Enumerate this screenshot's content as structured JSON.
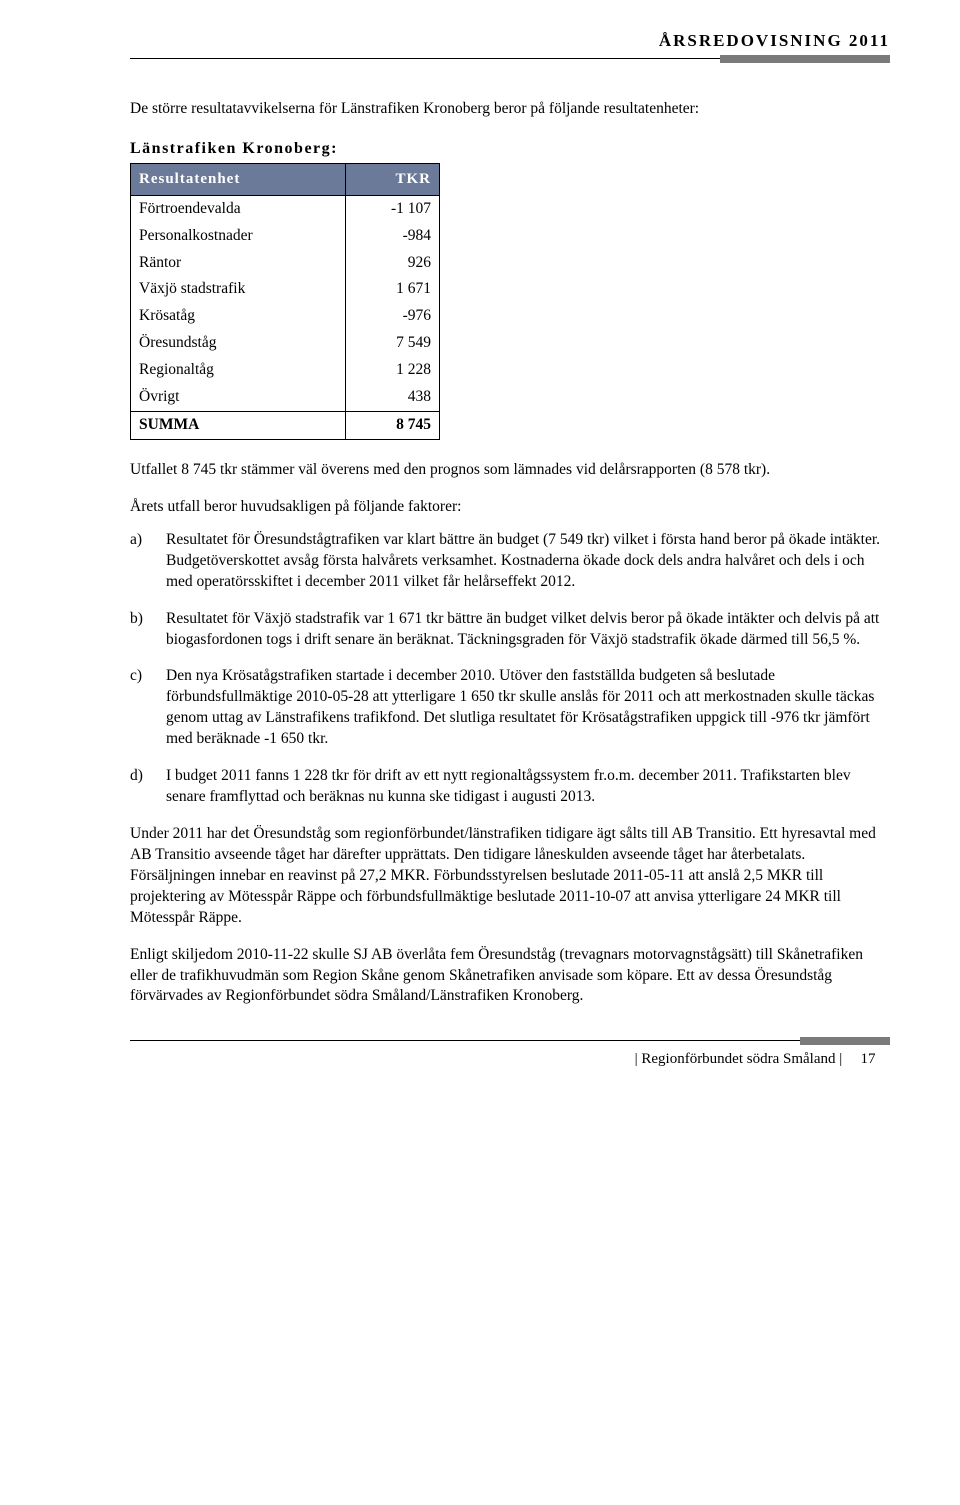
{
  "header": {
    "title": "ÅRSREDOVISNING 2011"
  },
  "intro": "De större resultatavvikelserna för Länstrafiken Kronoberg beror på följande resultatenheter:",
  "table": {
    "type": "table",
    "title": "Länstrafiken Kronoberg:",
    "header_bg": "#6a7a98",
    "header_fg": "#ffffff",
    "border_color": "#000000",
    "columns": [
      {
        "label": "Resultatenhet",
        "align": "left"
      },
      {
        "label": "TKR",
        "align": "right"
      }
    ],
    "rows": [
      {
        "name": "Förtroendevalda",
        "value": "-1 107"
      },
      {
        "name": "Personalkostnader",
        "value": "-984"
      },
      {
        "name": "Räntor",
        "value": "926"
      },
      {
        "name": "Växjö stadstrafik",
        "value": "1 671"
      },
      {
        "name": "Krösatåg",
        "value": "-976"
      },
      {
        "name": "Öresundståg",
        "value": "7 549"
      },
      {
        "name": "Regionaltåg",
        "value": "1 228"
      },
      {
        "name": "Övrigt",
        "value": "438"
      }
    ],
    "sum": {
      "name": "SUMMA",
      "value": "8 745"
    }
  },
  "after_table": "Utfallet 8 745 tkr stämmer väl överens med den prognos som lämnades vid delårsrapporten (8 578 tkr).",
  "list_intro": "Årets utfall beror huvudsakligen på följande faktorer:",
  "items": [
    {
      "marker": "a)",
      "text": "Resultatet för Öresundstågtrafiken var klart bättre än budget (7 549 tkr) vilket i första hand beror på ökade intäkter. Budgetöverskottet avsåg första halvårets verksamhet. Kostnaderna ökade dock dels andra halvåret och dels i och med operatörsskiftet i december 2011 vilket får helårseffekt 2012."
    },
    {
      "marker": "b)",
      "text": "Resultatet för Växjö stadstrafik var 1 671 tkr bättre än budget vilket delvis beror på ökade intäkter och delvis på att biogasfordonen togs i drift senare än beräknat. Täckningsgraden för Växjö stadstrafik ökade därmed till 56,5 %."
    },
    {
      "marker": "c)",
      "text": "Den nya Krösatågstrafiken startade i december 2010. Utöver den fastställda budgeten så beslutade förbundsfullmäktige 2010-05-28 att ytterligare 1 650 tkr skulle anslås för 2011 och att merkostnaden skulle täckas genom uttag av Länstrafikens trafikfond. Det slutliga resultatet för Krösatågstrafiken uppgick till -976 tkr jämfört med beräknade -1 650 tkr."
    },
    {
      "marker": "d)",
      "text": "I budget 2011 fanns 1 228 tkr för drift av ett nytt regionaltågssystem fr.o.m. december 2011. Trafikstarten blev senare framflyttad och beräknas nu kunna ske tidigast i augusti 2013."
    }
  ],
  "body_paras": [
    "Under 2011 har det Öresundståg som regionförbundet/länstrafiken tidigare ägt sålts till AB Transitio. Ett hyresavtal med AB Transitio avseende tåget har därefter upprättats. Den tidigare låneskulden avseende tåget har återbetalats. Försäljningen innebar en reavinst på 27,2 MKR. Förbundsstyrelsen beslutade 2011-05-11 att anslå 2,5 MKR till projektering av Mötesspår Räppe och förbundsfullmäktige beslutade 2011-10-07 att anvisa ytterligare 24 MKR till Mötesspår Räppe.",
    "Enligt skiljedom 2010-11-22 skulle SJ AB överlåta fem Öresundståg (trevagnars motorvagnstågsätt) till Skånetrafiken eller de trafikhuvudmän som Region Skåne genom Skånetrafiken anvisade som köpare. Ett av dessa Öresundståg förvärvades av Regionförbundet södra Småland/Länstrafiken Kronoberg."
  ],
  "footer": {
    "org": "| Regionförbundet södra Småland |",
    "page": "17"
  }
}
